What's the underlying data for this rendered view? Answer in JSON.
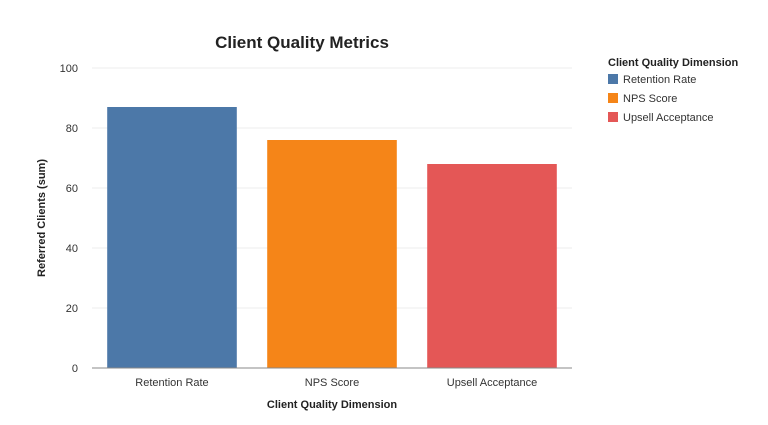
{
  "chart_data": {
    "type": "bar",
    "title": "Client Quality Metrics",
    "xlabel": "Client Quality Dimension",
    "ylabel": "Referred Clients (sum)",
    "categories": [
      "Retention Rate",
      "NPS Score",
      "Upsell Acceptance"
    ],
    "values": [
      87,
      76,
      68
    ],
    "colors": [
      "#4c78a8",
      "#f58518",
      "#e45756"
    ],
    "ylim": [
      0,
      100
    ],
    "yticks": [
      0,
      20,
      40,
      60,
      80,
      100
    ],
    "grid": true,
    "legend": {
      "title": "Client Quality Dimension",
      "placement": "top-right",
      "items": [
        "Retention Rate",
        "NPS Score",
        "Upsell Acceptance"
      ]
    }
  }
}
